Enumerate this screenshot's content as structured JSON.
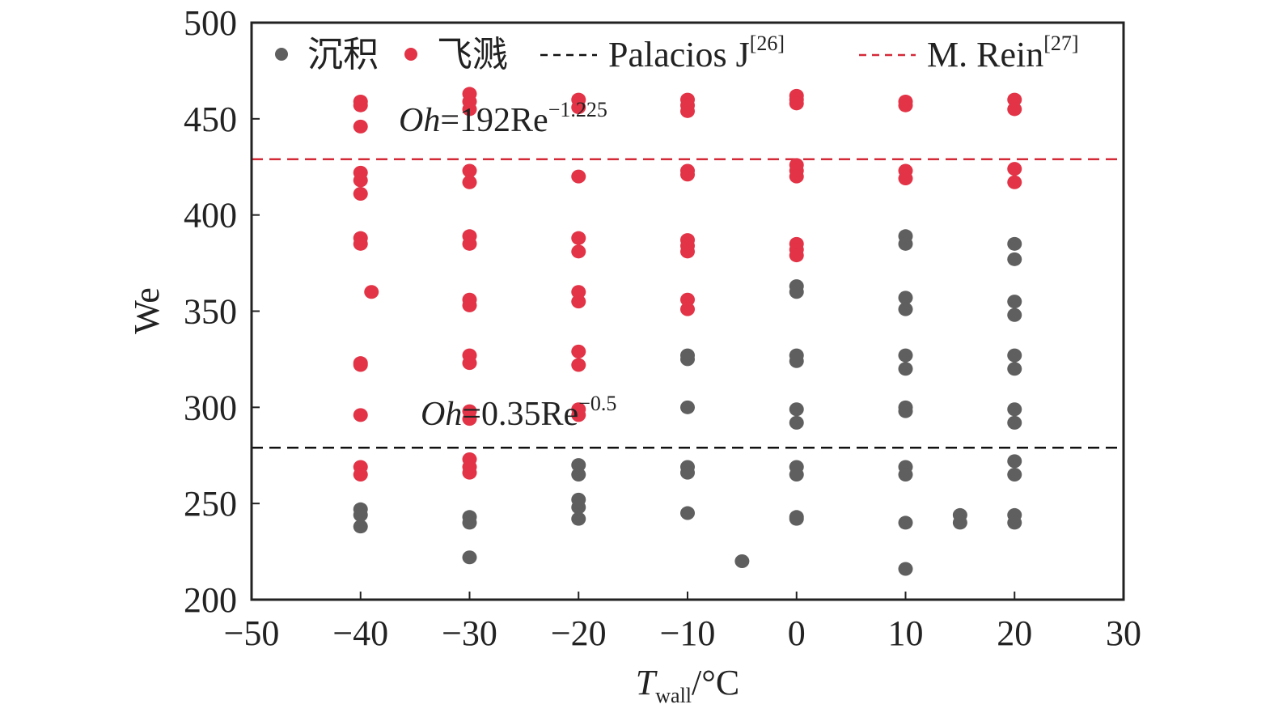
{
  "chart_data": {
    "type": "scatter",
    "title": "",
    "xlabel": "T",
    "xlabel_sub": "wall",
    "xlabel_unit": "/°C",
    "ylabel": "We",
    "xlim": [
      -50,
      30
    ],
    "ylim": [
      200,
      500
    ],
    "xticks": [
      "−50",
      "−40",
      "−30",
      "−20",
      "−10",
      "0",
      "10",
      "20",
      "30"
    ],
    "xtick_values": [
      -50,
      -40,
      -30,
      -20,
      -10,
      0,
      10,
      20,
      30
    ],
    "yticks": [
      "200",
      "250",
      "300",
      "350",
      "400",
      "450",
      "500"
    ],
    "ytick_values": [
      200,
      250,
      300,
      350,
      400,
      450,
      500
    ],
    "grid": false,
    "legend_position": "top",
    "colors": {
      "deposit": "#5f5f5f",
      "splash": "#e33346",
      "palacios": "#111111",
      "rein": "#d42a38",
      "axis": "#222222"
    },
    "series": [
      {
        "name": "沉积",
        "color": "#5f5f5f",
        "points": [
          [
            -40,
            247
          ],
          [
            -40,
            244
          ],
          [
            -40,
            238
          ],
          [
            -30,
            243
          ],
          [
            -30,
            240
          ],
          [
            -30,
            222
          ],
          [
            -20,
            270
          ],
          [
            -20,
            265
          ],
          [
            -20,
            252
          ],
          [
            -20,
            248
          ],
          [
            -20,
            242
          ],
          [
            -10,
            327
          ],
          [
            -10,
            325
          ],
          [
            -10,
            300
          ],
          [
            -10,
            269
          ],
          [
            -10,
            266
          ],
          [
            -10,
            245
          ],
          [
            -5,
            220
          ],
          [
            0,
            363
          ],
          [
            0,
            360
          ],
          [
            0,
            327
          ],
          [
            0,
            324
          ],
          [
            0,
            299
          ],
          [
            0,
            292
          ],
          [
            0,
            269
          ],
          [
            0,
            265
          ],
          [
            0,
            243
          ],
          [
            0,
            242
          ],
          [
            10,
            389
          ],
          [
            10,
            385
          ],
          [
            10,
            357
          ],
          [
            10,
            351
          ],
          [
            10,
            327
          ],
          [
            10,
            320
          ],
          [
            10,
            300
          ],
          [
            10,
            298
          ],
          [
            10,
            269
          ],
          [
            10,
            265
          ],
          [
            10,
            240
          ],
          [
            10,
            216
          ],
          [
            15,
            244
          ],
          [
            15,
            240
          ],
          [
            20,
            385
          ],
          [
            20,
            377
          ],
          [
            20,
            355
          ],
          [
            20,
            348
          ],
          [
            20,
            327
          ],
          [
            20,
            320
          ],
          [
            20,
            299
          ],
          [
            20,
            292
          ],
          [
            20,
            272
          ],
          [
            20,
            265
          ],
          [
            20,
            244
          ],
          [
            20,
            240
          ]
        ]
      },
      {
        "name": "飞溅",
        "color": "#e33346",
        "points": [
          [
            -40,
            459
          ],
          [
            -40,
            457
          ],
          [
            -40,
            446
          ],
          [
            -40,
            422
          ],
          [
            -40,
            418
          ],
          [
            -40,
            411
          ],
          [
            -40,
            388
          ],
          [
            -40,
            385
          ],
          [
            -39,
            360
          ],
          [
            -40,
            323
          ],
          [
            -40,
            322
          ],
          [
            -40,
            296
          ],
          [
            -40,
            269
          ],
          [
            -40,
            265
          ],
          [
            -30,
            463
          ],
          [
            -30,
            459
          ],
          [
            -30,
            455
          ],
          [
            -30,
            423
          ],
          [
            -30,
            417
          ],
          [
            -30,
            389
          ],
          [
            -30,
            385
          ],
          [
            -30,
            356
          ],
          [
            -30,
            353
          ],
          [
            -30,
            327
          ],
          [
            -30,
            323
          ],
          [
            -30,
            298
          ],
          [
            -30,
            294
          ],
          [
            -30,
            273
          ],
          [
            -30,
            269
          ],
          [
            -30,
            266
          ],
          [
            -20,
            460
          ],
          [
            -20,
            456
          ],
          [
            -20,
            420
          ],
          [
            -20,
            388
          ],
          [
            -20,
            381
          ],
          [
            -20,
            360
          ],
          [
            -20,
            355
          ],
          [
            -20,
            329
          ],
          [
            -20,
            322
          ],
          [
            -20,
            299
          ],
          [
            -20,
            296
          ],
          [
            -10,
            460
          ],
          [
            -10,
            457
          ],
          [
            -10,
            454
          ],
          [
            -10,
            423
          ],
          [
            -10,
            421
          ],
          [
            -10,
            387
          ],
          [
            -10,
            384
          ],
          [
            -10,
            381
          ],
          [
            -10,
            356
          ],
          [
            -10,
            351
          ],
          [
            0,
            462
          ],
          [
            0,
            460
          ],
          [
            0,
            458
          ],
          [
            0,
            426
          ],
          [
            0,
            423
          ],
          [
            0,
            420
          ],
          [
            0,
            385
          ],
          [
            0,
            382
          ],
          [
            0,
            379
          ],
          [
            10,
            459
          ],
          [
            10,
            457
          ],
          [
            10,
            423
          ],
          [
            10,
            419
          ],
          [
            20,
            460
          ],
          [
            20,
            455
          ],
          [
            20,
            424
          ],
          [
            20,
            417
          ]
        ]
      }
    ],
    "reference_lines": [
      {
        "name": "Palacios J",
        "ref": "[26]",
        "y": 279,
        "color": "#111111",
        "style": "dashed",
        "annotation": {
          "label": "Oh",
          "eq": "=0.35Re",
          "exp": "−0.5"
        }
      },
      {
        "name": "M. Rein",
        "ref": "[27]",
        "y": 429,
        "color": "#d42a38",
        "style": "dashed",
        "annotation": {
          "label": "Oh",
          "eq": "=192Re",
          "exp": "−1.225"
        }
      }
    ],
    "legend": [
      {
        "label": "沉积",
        "kind": "marker",
        "color": "#5f5f5f"
      },
      {
        "label": "飞溅",
        "kind": "marker",
        "color": "#e33346"
      },
      {
        "label": "Palacios J",
        "sup": "[26]",
        "kind": "line",
        "color": "#111111"
      },
      {
        "label": "M. Rein",
        "sup": "[27]",
        "kind": "line",
        "color": "#d42a38"
      }
    ]
  }
}
